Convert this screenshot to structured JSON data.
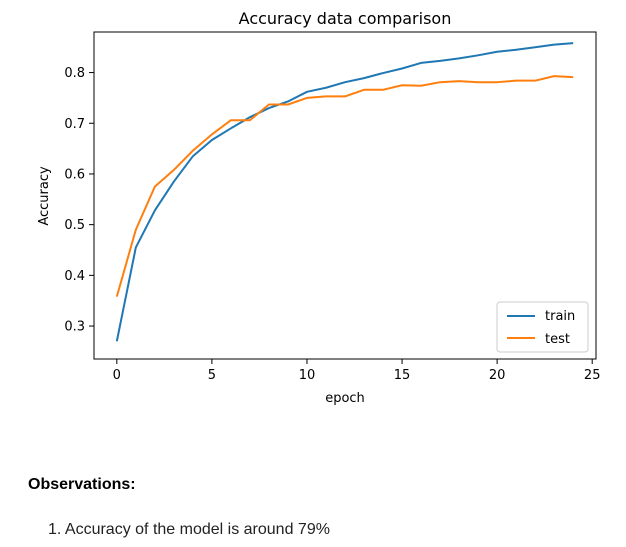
{
  "chart_data": {
    "type": "line",
    "title": "Accuracy data comparison",
    "xlabel": "epoch",
    "ylabel": "Accuracy",
    "xlim": [
      -1.2,
      25.2
    ],
    "ylim": [
      0.235,
      0.88
    ],
    "xticks": [
      0,
      5,
      10,
      15,
      20,
      25
    ],
    "yticks": [
      0.3,
      0.4,
      0.5,
      0.6,
      0.7,
      0.8
    ],
    "grid": false,
    "legend_placement": "lower-right",
    "x": [
      0,
      1,
      2,
      3,
      4,
      5,
      6,
      7,
      8,
      9,
      10,
      11,
      12,
      13,
      14,
      15,
      16,
      17,
      18,
      19,
      20,
      21,
      22,
      23,
      24
    ],
    "series": [
      {
        "name": "train",
        "color": "#1f77b4",
        "values": [
          0.27,
          0.455,
          0.528,
          0.585,
          0.635,
          0.667,
          0.69,
          0.712,
          0.73,
          0.743,
          0.762,
          0.77,
          0.781,
          0.789,
          0.799,
          0.808,
          0.819,
          0.823,
          0.828,
          0.834,
          0.841,
          0.845,
          0.85,
          0.855,
          0.858
        ]
      },
      {
        "name": "test",
        "color": "#ff7f0e",
        "values": [
          0.358,
          0.49,
          0.575,
          0.608,
          0.646,
          0.678,
          0.706,
          0.706,
          0.737,
          0.737,
          0.75,
          0.753,
          0.753,
          0.766,
          0.766,
          0.775,
          0.774,
          0.781,
          0.783,
          0.781,
          0.781,
          0.784,
          0.784,
          0.793,
          0.791
        ]
      }
    ]
  },
  "observations": {
    "heading": "Observations:",
    "items": [
      "1. Accuracy of the model is around 79%"
    ]
  }
}
